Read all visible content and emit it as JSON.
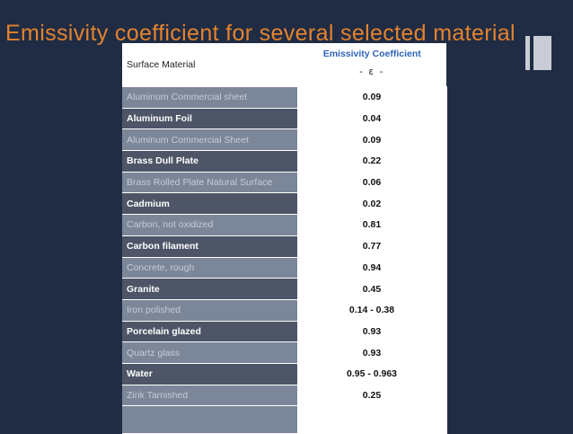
{
  "slide": {
    "title": "Emissivity coefficient for several selected material"
  },
  "table": {
    "header": {
      "material": "Surface Material",
      "coefficient_title": "Emissivity Coefficient",
      "coefficient_symbol": "- ε -"
    },
    "rows": [
      {
        "material": "Aluminum Commercial sheet",
        "value": "0.09"
      },
      {
        "material": "Aluminum Foil",
        "value": "0.04"
      },
      {
        "material": "Aluminum Commercial Sheet",
        "value": "0.09"
      },
      {
        "material": "Brass Dull Plate",
        "value": "0.22"
      },
      {
        "material": "Brass Rolled Plate Natural Surface",
        "value": "0.06"
      },
      {
        "material": "Cadmium",
        "value": "0.02"
      },
      {
        "material": "Carbon, not oxidized",
        "value": "0.81"
      },
      {
        "material": "Carbon filament",
        "value": "0.77"
      },
      {
        "material": "Concrete, rough",
        "value": "0.94"
      },
      {
        "material": "Granite",
        "value": "0.45"
      },
      {
        "material": "Iron polished",
        "value": "0.14 - 0.38"
      },
      {
        "material": "Porcelain glazed",
        "value": "0.93"
      },
      {
        "material": "Quartz glass",
        "value": "0.93"
      },
      {
        "material": "Water",
        "value": "0.95 - 0.963"
      },
      {
        "material": "Zink Tarnished",
        "value": "0.25"
      }
    ]
  },
  "colors": {
    "background": "#1f2c44",
    "title": "#e4822e",
    "header_accent": "#2e64b8",
    "row_light": "#7b8698",
    "row_dark": "#4d5566"
  }
}
